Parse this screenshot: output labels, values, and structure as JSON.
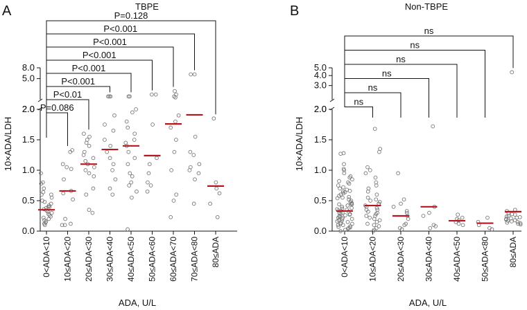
{
  "colors": {
    "median": "#b8141e",
    "point": "#777777",
    "axis": "#111111"
  },
  "chart_data": [
    {
      "type": "scatter",
      "panel_label": "A",
      "title": "TBPE",
      "xlabel": "ADA, U/L",
      "ylabel": "10×ADA/LDH",
      "categories": [
        "0<ADA<10",
        "10≤ADA<20",
        "20≤ADA<30",
        "30≤ADA<40",
        "40≤ADA<50",
        "50≤ADA<60",
        "60≤ADA<70",
        "70≤ADA<80",
        "80≤ADA"
      ],
      "y_ticks_lower": [
        "0.0",
        "0.5",
        "1.0",
        "1.5",
        "2.0"
      ],
      "y_ticks_upper": [
        "2.0",
        "5.0",
        "8.0"
      ],
      "y_break": 2.0,
      "ylim": [
        0,
        8
      ],
      "medians": [
        0.35,
        0.66,
        1.1,
        1.34,
        1.4,
        1.24,
        1.76,
        1.91,
        0.74
      ],
      "points": [
        [
          0.95,
          0.8,
          0.78,
          0.7,
          0.64,
          0.6,
          0.55,
          0.5,
          0.48,
          0.45,
          0.42,
          0.4,
          0.38,
          0.36,
          0.34,
          0.32,
          0.3,
          0.28,
          0.26,
          0.24,
          0.22,
          0.2,
          0.18,
          0.16,
          0.14,
          0.12,
          0.1,
          0.6,
          0.4
        ],
        [
          1.33,
          1.3,
          1.1,
          1.05,
          1.02,
          0.85,
          0.66,
          0.62,
          0.52,
          0.2,
          0.12,
          0.1,
          0.1
        ],
        [
          1.6,
          1.55,
          1.5,
          1.45,
          1.4,
          1.3,
          1.25,
          1.2,
          1.15,
          1.1,
          1.05,
          1.0,
          0.95,
          0.9,
          0.7,
          0.6,
          0.35,
          0.3
        ],
        [
          2.3,
          2.3,
          2.3,
          1.9,
          1.75,
          1.65,
          1.5,
          1.4,
          1.3,
          1.2,
          1.1,
          1.0,
          0.85,
          0.7,
          0.6
        ],
        [
          2.3,
          2.3,
          2.0,
          1.95,
          1.8,
          1.7,
          1.6,
          1.5,
          1.45,
          1.4,
          1.3,
          1.2,
          1.1,
          0.95,
          0.9,
          0.8,
          0.75,
          0.65,
          0.55,
          0.03
        ],
        [
          2.5,
          2.5,
          1.75,
          1.2,
          1.1,
          0.95,
          0.8,
          0.75,
          0.65
        ],
        [
          2.9,
          2.5,
          2.3,
          2.2,
          1.9,
          1.8,
          1.7,
          1.5,
          1.3,
          1.0,
          0.6,
          0.5,
          0.23
        ],
        [
          6.0,
          6.0,
          1.55,
          1.3,
          1.25,
          1.1,
          1.05,
          1.0,
          0.95,
          0.85,
          0.45
        ],
        [
          1.85,
          0.8,
          0.7,
          0.62,
          0.45,
          0.23
        ]
      ],
      "comparisons": [
        {
          "label": "P=0.086",
          "from": 0,
          "to": 1
        },
        {
          "label": "P<0.01",
          "from": 0,
          "to": 2
        },
        {
          "label": "P<0.001",
          "from": 0,
          "to": 3
        },
        {
          "label": "P<0.001",
          "from": 0,
          "to": 4
        },
        {
          "label": "P<0.001",
          "from": 0,
          "to": 5
        },
        {
          "label": "P<0.001",
          "from": 0,
          "to": 6
        },
        {
          "label": "P<0.001",
          "from": 0,
          "to": 7
        },
        {
          "label": "P=0.128",
          "from": 0,
          "to": 8
        }
      ]
    },
    {
      "type": "scatter",
      "panel_label": "B",
      "title": "Non-TBPE",
      "xlabel": "ADA, U/L",
      "ylabel": "10×ADA/LDH",
      "categories": [
        "0<ADA<10",
        "10≤ADA<20",
        "20≤ADA<30",
        "30≤ADA<40",
        "40≤ADA<50",
        "50≤ADA<80",
        "80≤ADA"
      ],
      "y_ticks_lower": [
        "0.0",
        "0.5",
        "1.0",
        "1.5",
        "2.0"
      ],
      "y_ticks_upper": [
        "2.0",
        "3.0",
        "4.0",
        "5.0"
      ],
      "y_break": 2.0,
      "ylim": [
        0,
        5
      ],
      "medians": [
        0.33,
        0.42,
        0.25,
        0.4,
        0.17,
        0.13,
        0.32
      ],
      "points": [
        [
          1.28,
          1.27,
          1.1,
          1.02,
          1.0,
          0.95,
          0.9,
          0.88,
          0.85,
          0.82,
          0.8,
          0.78,
          0.75,
          0.72,
          0.7,
          0.68,
          0.66,
          0.64,
          0.62,
          0.6,
          0.58,
          0.56,
          0.54,
          0.52,
          0.5,
          0.48,
          0.46,
          0.44,
          0.42,
          0.4,
          0.38,
          0.36,
          0.34,
          0.32,
          0.3,
          0.28,
          0.26,
          0.24,
          0.22,
          0.2,
          0.18,
          0.16,
          0.14,
          0.12,
          0.1,
          0.08,
          0.06,
          0.04,
          0.02,
          0.0,
          0.55,
          0.45,
          0.35,
          0.25,
          0.15,
          0.05,
          0.65,
          0.42,
          0.3,
          0.2,
          0.1,
          0.22,
          0.33,
          0.44,
          0.12,
          0.27,
          0.37,
          0.17,
          0.07,
          0.28
        ],
        [
          1.68,
          1.35,
          1.3,
          1.05,
          1.0,
          0.95,
          0.88,
          0.8,
          0.75,
          0.7,
          0.65,
          0.6,
          0.55,
          0.52,
          0.5,
          0.48,
          0.45,
          0.42,
          0.4,
          0.38,
          0.35,
          0.32,
          0.3,
          0.28,
          0.25,
          0.22,
          0.2,
          0.18,
          0.15,
          0.12,
          0.1,
          0.08,
          0.05,
          0.02,
          0.0,
          0.45,
          0.35,
          0.25
        ],
        [
          0.95,
          0.52,
          0.45,
          0.4,
          0.33,
          0.3,
          0.25,
          0.2,
          0.12,
          0.1,
          0.05,
          0.03
        ],
        [
          1.72,
          0.4,
          0.3,
          0.25,
          0.1,
          0.08,
          0.05
        ],
        [
          0.27,
          0.22,
          0.2,
          0.18,
          0.15,
          0.12,
          0.1
        ],
        [
          0.22,
          0.15,
          0.1,
          0.05,
          0.03
        ],
        [
          4.4,
          0.35,
          0.33,
          0.3,
          0.28,
          0.27,
          0.25,
          0.24,
          0.23,
          0.22,
          0.21,
          0.2,
          0.19,
          0.18,
          0.17,
          0.16,
          0.15,
          0.14,
          0.13,
          0.12,
          0.11
        ]
      ],
      "comparisons": [
        {
          "label": "ns",
          "from": 0,
          "to": 1
        },
        {
          "label": "ns",
          "from": 0,
          "to": 2
        },
        {
          "label": "ns",
          "from": 0,
          "to": 3
        },
        {
          "label": "ns",
          "from": 0,
          "to": 4
        },
        {
          "label": "ns",
          "from": 0,
          "to": 5
        },
        {
          "label": "ns",
          "from": 0,
          "to": 6
        }
      ]
    }
  ]
}
